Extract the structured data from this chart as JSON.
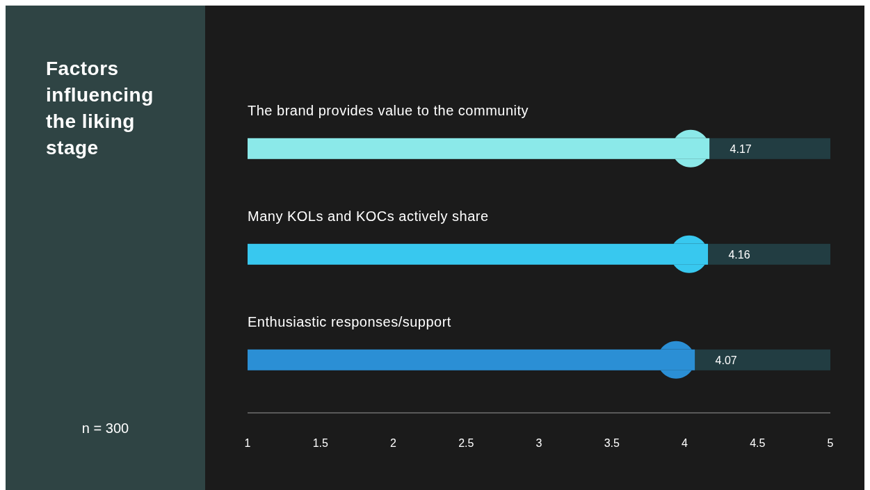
{
  "chart_data": {
    "type": "bar",
    "orientation": "horizontal",
    "title": "Factors influencing the liking stage",
    "categories": [
      "The brand provides value to the community",
      "Many KOLs and KOCs actively share",
      "Enthusiastic responses/support"
    ],
    "values": [
      4.17,
      4.16,
      4.07
    ],
    "colors": [
      "#8be9e9",
      "#38c8ef",
      "#2b8fd5"
    ],
    "xlim": [
      1,
      5
    ],
    "xticks": [
      1,
      1.5,
      2,
      2.5,
      3,
      3.5,
      4,
      4.5,
      5
    ],
    "data_labels": true,
    "annotations": [
      "n = 300"
    ]
  }
}
